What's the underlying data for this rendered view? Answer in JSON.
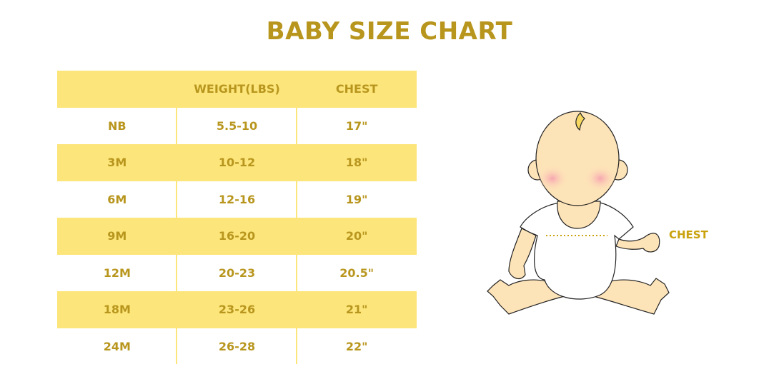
{
  "title": "BABY SIZE CHART",
  "table": {
    "headers": [
      "",
      "WEIGHT(LBS)",
      "CHEST"
    ],
    "rows": [
      [
        "NB",
        "5.5-10",
        "17\""
      ],
      [
        "3M",
        "10-12",
        "18\""
      ],
      [
        "6M",
        "12-16",
        "19\""
      ],
      [
        "9M",
        "16-20",
        "20\""
      ],
      [
        "12M",
        "20-23",
        "20.5\""
      ],
      [
        "18M",
        "23-26",
        "21\""
      ],
      [
        "24M",
        "26-28",
        "22\""
      ]
    ]
  },
  "illustration": {
    "chest_label": "CHEST"
  },
  "colors": {
    "text": "#b8961e",
    "row_fill": "#fce57a",
    "skin": "#fde3b8"
  }
}
